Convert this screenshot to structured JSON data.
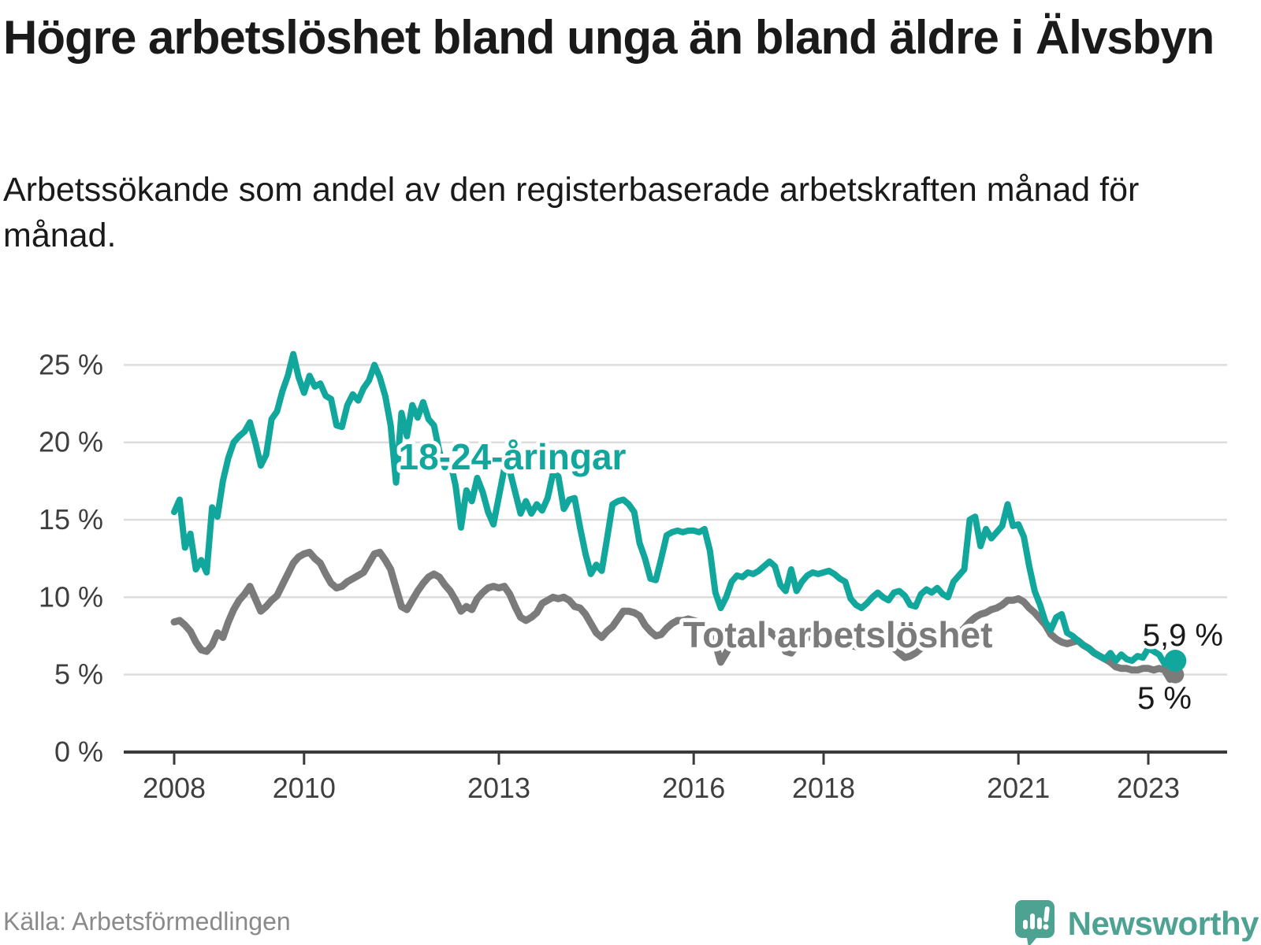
{
  "header": {
    "title": "Högre arbetslöshet bland unga än bland äldre i Älvsbyn",
    "subtitle": "Arbetssökande som andel av den registerbaserade arbetskraften månad för månad."
  },
  "chart_data": {
    "type": "line",
    "title": "Högre arbetslöshet bland unga än bland äldre i Älvsbyn",
    "subtitle": "Arbetssökande som andel av den registerbaserade arbetskraften månad för månad.",
    "x_axis": {
      "unit": "month",
      "start": "2008-01",
      "end": "2023-06",
      "tick_years": [
        2008,
        2010,
        2013,
        2016,
        2018,
        2021,
        2023
      ]
    },
    "y_axis": {
      "ylim": [
        0,
        26
      ],
      "grid": true,
      "ticks": [
        {
          "value": 25,
          "label": "25 %"
        },
        {
          "value": 20,
          "label": "20 %"
        },
        {
          "value": 15,
          "label": "15 %"
        },
        {
          "value": 10,
          "label": "10 %"
        },
        {
          "value": 5,
          "label": "5 %"
        },
        {
          "value": 0,
          "label": "0 %"
        }
      ]
    },
    "series": [
      {
        "name": "Total arbetslöshet",
        "color": "#7b7b7b",
        "stroke_width": 9,
        "end_label": "5 %",
        "end_value": 5.0,
        "values": [
          8.4,
          8.5,
          8.2,
          7.8,
          7.1,
          6.6,
          6.5,
          6.9,
          7.7,
          7.4,
          8.4,
          9.2,
          9.8,
          10.2,
          10.7,
          9.9,
          9.1,
          9.4,
          9.8,
          10.1,
          10.8,
          11.5,
          12.2,
          12.6,
          12.8,
          12.9,
          12.5,
          12.2,
          11.5,
          10.9,
          10.6,
          10.7,
          11.0,
          11.2,
          11.4,
          11.6,
          12.2,
          12.8,
          12.9,
          12.4,
          11.8,
          10.6,
          9.4,
          9.2,
          9.8,
          10.4,
          10.9,
          11.3,
          11.5,
          11.3,
          10.8,
          10.4,
          9.8,
          9.1,
          9.4,
          9.2,
          9.9,
          10.3,
          10.6,
          10.7,
          10.6,
          10.7,
          10.2,
          9.4,
          8.7,
          8.5,
          8.7,
          9.0,
          9.6,
          9.8,
          10.0,
          9.9,
          10.0,
          9.8,
          9.4,
          9.3,
          8.9,
          8.3,
          7.7,
          7.4,
          7.8,
          8.1,
          8.6,
          9.1,
          9.1,
          9.0,
          8.8,
          8.2,
          7.8,
          7.5,
          7.6,
          8.0,
          8.3,
          8.5,
          8.5,
          8.6,
          8.5,
          8.4,
          8.3,
          7.6,
          7.0,
          5.8,
          6.4,
          7.0,
          7.2,
          7.3,
          7.4,
          7.5,
          7.5,
          7.7,
          7.8,
          7.5,
          7.1,
          6.5,
          6.4,
          6.9,
          7.2,
          7.4,
          7.5,
          7.6,
          7.6,
          7.7,
          7.6,
          7.4,
          7.1,
          6.9,
          6.8,
          6.9,
          7.0,
          7.1,
          7.2,
          7.0,
          6.9,
          6.7,
          6.4,
          6.1,
          6.2,
          6.4,
          6.7,
          6.9,
          6.9,
          6.9,
          6.9,
          7.0,
          7.3,
          7.7,
          8.0,
          8.4,
          8.7,
          8.9,
          9.0,
          9.2,
          9.3,
          9.5,
          9.8,
          9.8,
          9.9,
          9.7,
          9.3,
          9.0,
          8.6,
          8.2,
          7.6,
          7.3,
          7.1,
          7.0,
          7.1,
          7.2,
          6.9,
          6.7,
          6.4,
          6.2,
          6.0,
          5.8,
          5.5,
          5.4,
          5.4,
          5.3,
          5.3,
          5.4,
          5.4,
          5.3,
          5.4,
          5.3,
          4.7,
          5.0
        ]
      },
      {
        "name": "18-24-åringar",
        "color": "#12a79c",
        "stroke_width": 8,
        "end_label": "5,9 %",
        "end_value": 5.9,
        "values": [
          15.5,
          16.3,
          13.2,
          14.1,
          11.8,
          12.4,
          11.6,
          15.8,
          15.2,
          17.5,
          19.0,
          20.0,
          20.4,
          20.7,
          21.3,
          20.0,
          18.5,
          19.2,
          21.5,
          22.0,
          23.3,
          24.3,
          25.7,
          24.2,
          23.2,
          24.3,
          23.6,
          23.8,
          23.0,
          22.8,
          21.1,
          21.0,
          22.4,
          23.1,
          22.7,
          23.5,
          24.0,
          25.0,
          24.2,
          23.0,
          21.1,
          17.4,
          21.9,
          20.4,
          22.4,
          21.6,
          22.6,
          21.5,
          21.1,
          19.4,
          18.4,
          18.8,
          17.2,
          14.5,
          16.9,
          16.2,
          17.7,
          16.8,
          15.5,
          14.7,
          16.5,
          18.3,
          18.2,
          16.8,
          15.4,
          16.2,
          15.4,
          16.0,
          15.6,
          16.4,
          18.0,
          17.8,
          15.7,
          16.3,
          16.4,
          14.5,
          12.8,
          11.5,
          12.1,
          11.7,
          13.8,
          16.0,
          16.2,
          16.3,
          16.0,
          15.5,
          13.5,
          12.5,
          11.2,
          11.1,
          12.5,
          14.0,
          14.2,
          14.3,
          14.2,
          14.3,
          14.3,
          14.2,
          14.4,
          13.0,
          10.3,
          9.3,
          10.0,
          11.0,
          11.4,
          11.3,
          11.6,
          11.5,
          11.7,
          12.0,
          12.3,
          12.0,
          10.8,
          10.4,
          11.8,
          10.4,
          11.0,
          11.4,
          11.6,
          11.5,
          11.6,
          11.7,
          11.5,
          11.2,
          11.0,
          9.9,
          9.5,
          9.3,
          9.6,
          10.0,
          10.3,
          10.0,
          9.8,
          10.3,
          10.4,
          10.1,
          9.5,
          9.4,
          10.2,
          10.5,
          10.3,
          10.6,
          10.2,
          10.0,
          11.0,
          11.4,
          11.8,
          15.0,
          15.2,
          13.3,
          14.4,
          13.8,
          14.2,
          14.6,
          16.0,
          14.6,
          14.7,
          13.9,
          12.0,
          10.4,
          9.5,
          8.4,
          7.9,
          8.7,
          8.9,
          7.7,
          7.5,
          7.2,
          6.9,
          6.7,
          6.4,
          6.2,
          6.0,
          6.4,
          5.9,
          6.3,
          6.0,
          5.9,
          6.2,
          6.1,
          6.7,
          6.5,
          6.3,
          5.7,
          5.7,
          5.9
        ]
      }
    ]
  },
  "footer": {
    "source": "Källa: Arbetsförmedlingen",
    "brand": "Newsworthy",
    "brand_color": "#4da292"
  }
}
